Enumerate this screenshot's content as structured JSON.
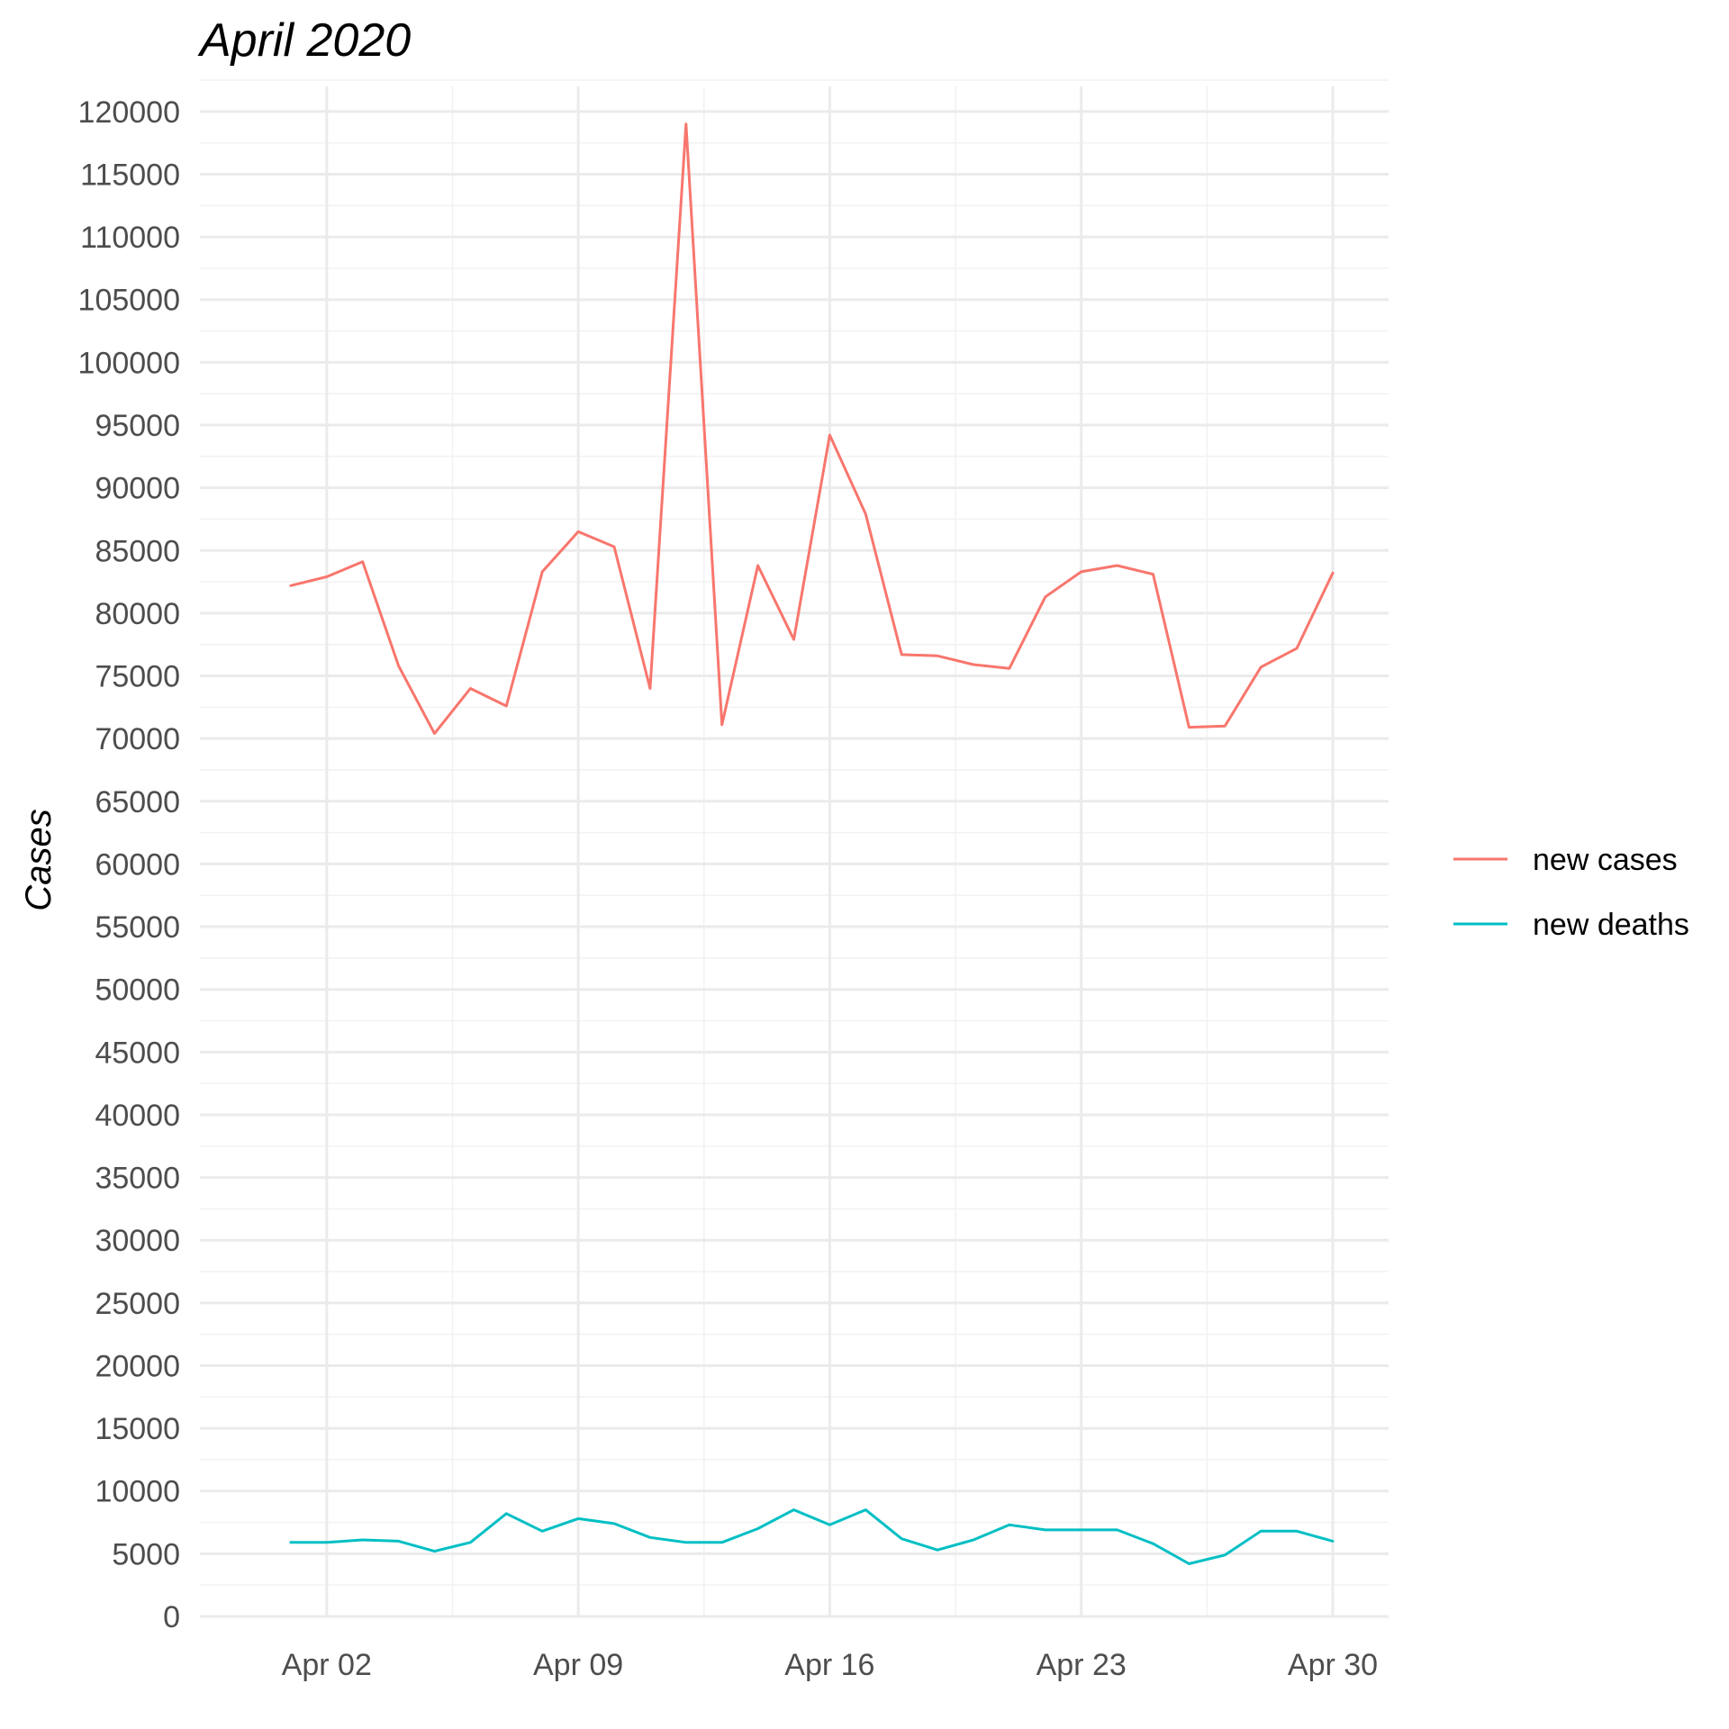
{
  "chart_data": {
    "type": "line",
    "title": "April 2020",
    "ylabel": "Cases",
    "xlabel": "",
    "ylim": [
      0,
      122000
    ],
    "xlim": [
      "2020-03-31",
      "2020-04-30"
    ],
    "yticks": [
      0,
      5000,
      10000,
      15000,
      20000,
      25000,
      30000,
      35000,
      40000,
      45000,
      50000,
      55000,
      60000,
      65000,
      70000,
      75000,
      80000,
      85000,
      90000,
      95000,
      100000,
      105000,
      110000,
      115000,
      120000
    ],
    "ytick_labels": [
      "0",
      "5000",
      "10000",
      "15000",
      "20000",
      "25000",
      "30000",
      "35000",
      "40000",
      "45000",
      "50000",
      "55000",
      "60000",
      "65000",
      "70000",
      "75000",
      "80000",
      "85000",
      "90000",
      "95000",
      "100000",
      "105000",
      "110000",
      "115000",
      "120000"
    ],
    "xticks": [
      "2020-04-02",
      "2020-04-09",
      "2020-04-16",
      "2020-04-23",
      "2020-04-30"
    ],
    "xtick_labels": [
      "Apr 02",
      "Apr 09",
      "Apr 16",
      "Apr 23",
      "Apr 30"
    ],
    "grid": true,
    "legend_position": "right",
    "x": [
      "2020-04-01",
      "2020-04-02",
      "2020-04-03",
      "2020-04-04",
      "2020-04-05",
      "2020-04-06",
      "2020-04-07",
      "2020-04-08",
      "2020-04-09",
      "2020-04-10",
      "2020-04-11",
      "2020-04-12",
      "2020-04-13",
      "2020-04-14",
      "2020-04-15",
      "2020-04-16",
      "2020-04-17",
      "2020-04-18",
      "2020-04-19",
      "2020-04-20",
      "2020-04-21",
      "2020-04-22",
      "2020-04-23",
      "2020-04-24",
      "2020-04-25",
      "2020-04-26",
      "2020-04-27",
      "2020-04-28",
      "2020-04-29",
      "2020-04-30"
    ],
    "series": [
      {
        "name": "new cases",
        "color": "#F8766D",
        "values": [
          82200,
          82900,
          84100,
          75800,
          70400,
          74000,
          72600,
          83300,
          86500,
          85300,
          74000,
          119000,
          71100,
          83800,
          77900,
          94200,
          87900,
          76700,
          76600,
          75900,
          75600,
          81300,
          83300,
          83800,
          83100,
          70900,
          71000,
          75700,
          77200,
          83200
        ]
      },
      {
        "name": "new deaths",
        "color": "#00BFC4",
        "values": [
          5900,
          5900,
          6100,
          6000,
          5200,
          5900,
          8200,
          6800,
          7800,
          7400,
          6300,
          5900,
          5900,
          7000,
          8500,
          7300,
          8500,
          6200,
          5300,
          6100,
          7300,
          6900,
          6900,
          6900,
          5800,
          4200,
          4900,
          6800,
          6800,
          6000
        ]
      }
    ]
  }
}
